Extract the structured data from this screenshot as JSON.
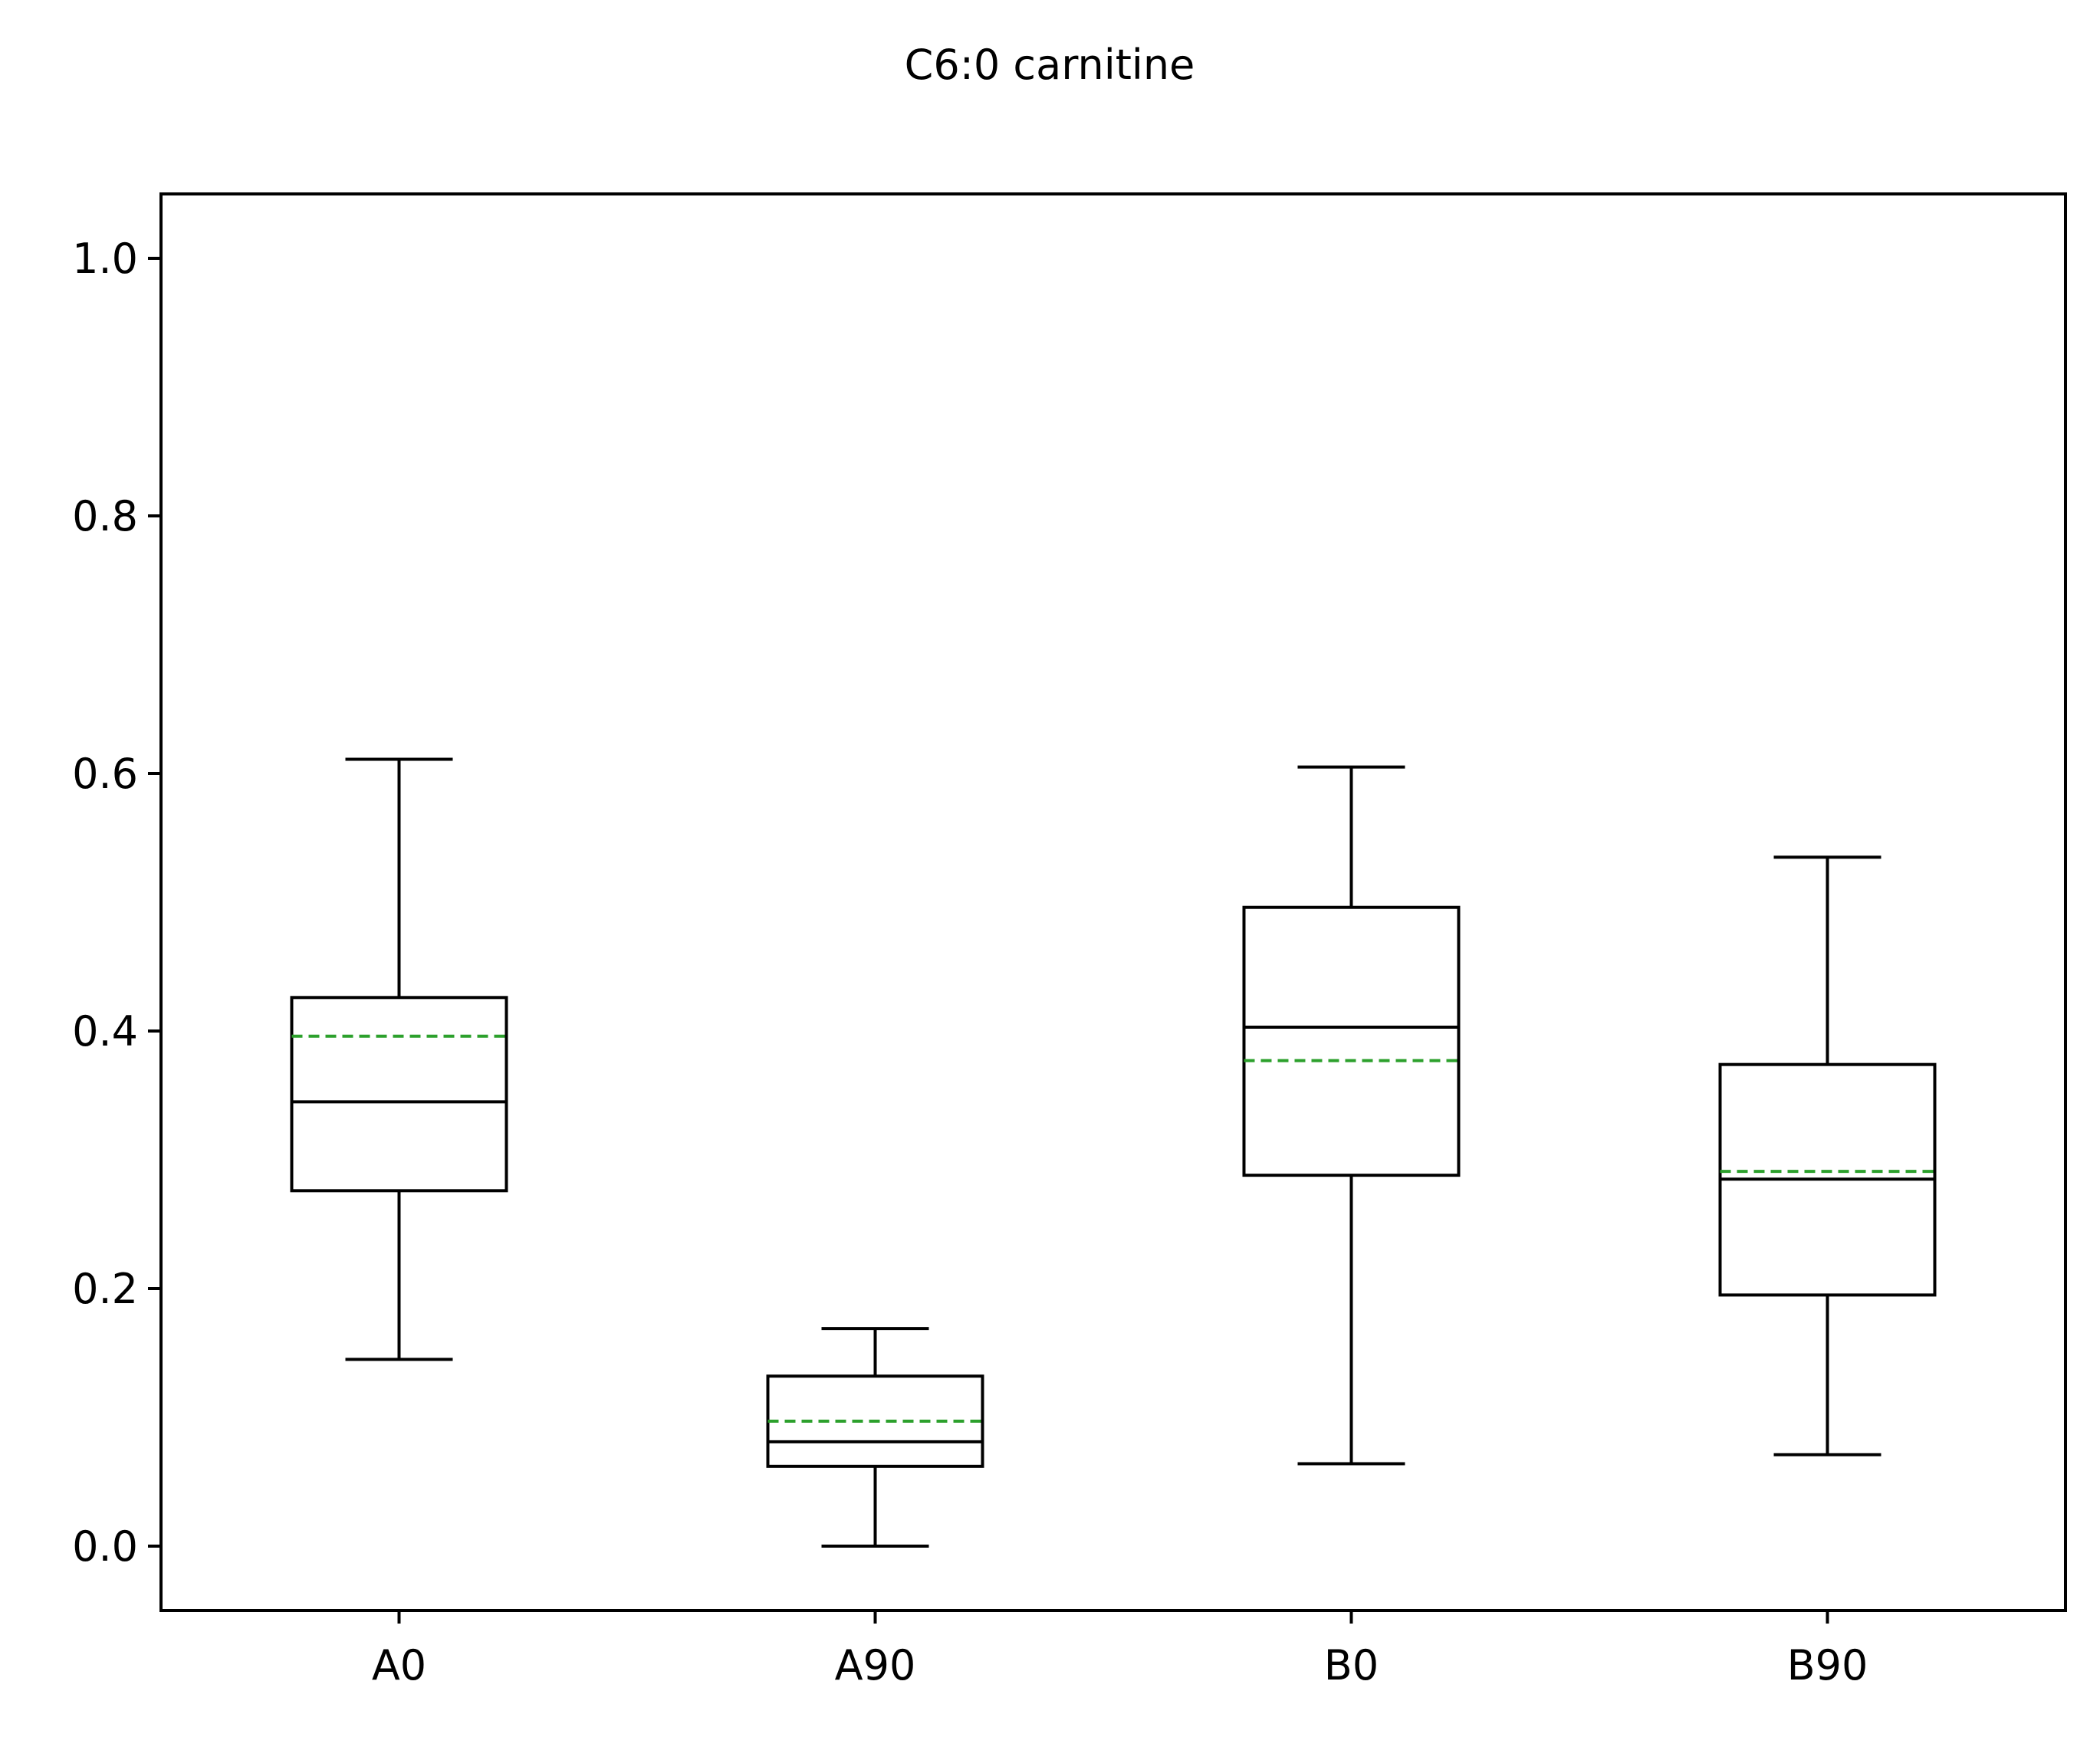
{
  "chart_data": {
    "type": "box",
    "title": "C6:0 carnitine",
    "xlabel": "",
    "ylabel": "",
    "ylim": [
      -0.05,
      1.05
    ],
    "y_ticks": [
      0.0,
      0.2,
      0.4,
      0.6,
      0.8,
      1.0
    ],
    "y_tick_labels": [
      "0.0",
      "0.2",
      "0.4",
      "0.6",
      "0.8",
      "1.0"
    ],
    "categories": [
      "A0",
      "A90",
      "B0",
      "B90"
    ],
    "grid": false,
    "legend": "none",
    "colors": {
      "box": "#000000",
      "median": "#000000",
      "mean": "#2ca02c",
      "axes": "#000000"
    },
    "boxes": [
      {
        "label": "A0",
        "whisker_low": 0.145,
        "q1": 0.276,
        "median": 0.345,
        "q3": 0.426,
        "whisker_high": 0.611,
        "mean": 0.396
      },
      {
        "label": "A90",
        "whisker_low": 0.0,
        "q1": 0.062,
        "median": 0.081,
        "q3": 0.132,
        "whisker_high": 0.169,
        "mean": 0.097
      },
      {
        "label": "B0",
        "whisker_low": 0.064,
        "q1": 0.288,
        "median": 0.403,
        "q3": 0.496,
        "whisker_high": 0.605,
        "mean": 0.377
      },
      {
        "label": "B90",
        "whisker_low": 0.071,
        "q1": 0.195,
        "median": 0.285,
        "q3": 0.374,
        "whisker_high": 0.535,
        "mean": 0.291
      }
    ]
  }
}
